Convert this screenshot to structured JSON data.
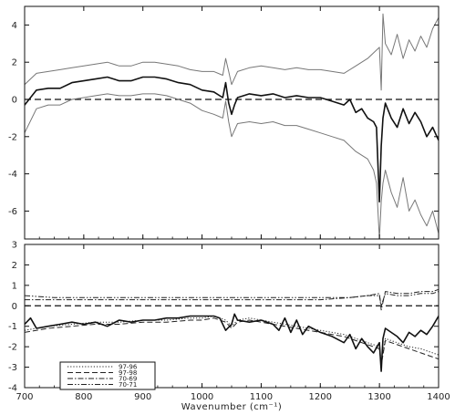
{
  "chart_data": [
    {
      "type": "line",
      "panel": "top",
      "xlabel": "",
      "ylabel": "",
      "xlim": [
        700,
        1400
      ],
      "ylim": [
        -7.5,
        5
      ],
      "xticks": [
        700,
        800,
        900,
        1000,
        1100,
        1200,
        1300,
        1400
      ],
      "yticks": [
        -6,
        -4,
        -2,
        0,
        2,
        4
      ],
      "zero_line": "dashed",
      "series": [
        {
          "role": "mean",
          "color": "#111111",
          "x": [
            700,
            720,
            740,
            760,
            780,
            800,
            820,
            840,
            860,
            880,
            900,
            920,
            940,
            960,
            980,
            1000,
            1020,
            1035,
            1040,
            1045,
            1050,
            1055,
            1060,
            1080,
            1100,
            1120,
            1140,
            1160,
            1180,
            1200,
            1220,
            1240,
            1250,
            1260,
            1270,
            1280,
            1290,
            1295,
            1300,
            1303,
            1306,
            1310,
            1320,
            1330,
            1340,
            1350,
            1360,
            1370,
            1380,
            1390,
            1400
          ],
          "values": [
            -0.3,
            0.5,
            0.6,
            0.6,
            0.9,
            1.0,
            1.1,
            1.2,
            1.0,
            1.0,
            1.2,
            1.2,
            1.1,
            0.9,
            0.8,
            0.5,
            0.4,
            0.1,
            0.9,
            -0.2,
            -0.8,
            -0.3,
            0.1,
            0.3,
            0.2,
            0.3,
            0.1,
            0.2,
            0.1,
            0.1,
            -0.1,
            -0.3,
            0.0,
            -0.7,
            -0.5,
            -1.0,
            -1.2,
            -1.5,
            -5.5,
            -2.5,
            -1.0,
            -0.2,
            -1.0,
            -1.5,
            -0.5,
            -1.3,
            -0.7,
            -1.2,
            -2.0,
            -1.5,
            -2.2
          ]
        },
        {
          "role": "upper-bound",
          "color": "#777777",
          "x": [
            700,
            720,
            740,
            760,
            780,
            800,
            820,
            840,
            860,
            880,
            900,
            920,
            940,
            960,
            980,
            1000,
            1020,
            1035,
            1040,
            1045,
            1050,
            1060,
            1080,
            1100,
            1120,
            1140,
            1160,
            1180,
            1200,
            1220,
            1240,
            1260,
            1280,
            1300,
            1303,
            1306,
            1310,
            1320,
            1330,
            1340,
            1350,
            1360,
            1370,
            1380,
            1390,
            1400
          ],
          "values": [
            0.8,
            1.4,
            1.5,
            1.6,
            1.7,
            1.8,
            1.9,
            2.0,
            1.8,
            1.8,
            2.0,
            2.0,
            1.9,
            1.8,
            1.6,
            1.5,
            1.5,
            1.3,
            2.2,
            1.5,
            0.8,
            1.5,
            1.7,
            1.8,
            1.7,
            1.6,
            1.7,
            1.6,
            1.6,
            1.5,
            1.4,
            1.8,
            2.2,
            2.8,
            0.5,
            4.6,
            3.0,
            2.4,
            3.5,
            2.2,
            3.2,
            2.6,
            3.4,
            2.8,
            3.8,
            4.4
          ]
        },
        {
          "role": "lower-bound",
          "color": "#777777",
          "x": [
            700,
            720,
            740,
            760,
            780,
            800,
            820,
            840,
            860,
            880,
            900,
            920,
            940,
            960,
            980,
            1000,
            1020,
            1035,
            1040,
            1045,
            1050,
            1060,
            1080,
            1100,
            1120,
            1140,
            1160,
            1180,
            1200,
            1220,
            1240,
            1260,
            1280,
            1290,
            1295,
            1300,
            1303,
            1306,
            1310,
            1320,
            1330,
            1340,
            1350,
            1360,
            1370,
            1380,
            1390,
            1400
          ],
          "values": [
            -1.8,
            -0.5,
            -0.3,
            -0.3,
            0.0,
            0.1,
            0.2,
            0.3,
            0.2,
            0.2,
            0.3,
            0.3,
            0.2,
            0.0,
            -0.2,
            -0.6,
            -0.8,
            -1.0,
            -0.1,
            -1.2,
            -2.0,
            -1.3,
            -1.2,
            -1.3,
            -1.2,
            -1.4,
            -1.4,
            -1.6,
            -1.8,
            -2.0,
            -2.2,
            -2.8,
            -3.2,
            -3.8,
            -4.5,
            -7.5,
            -5.5,
            -4.5,
            -3.8,
            -5.0,
            -5.8,
            -4.2,
            -6.0,
            -5.4,
            -6.2,
            -6.8,
            -6.0,
            -7.2
          ]
        }
      ]
    },
    {
      "type": "line",
      "panel": "bottom",
      "xlabel": "Wavenumber (cm⁻¹)",
      "ylabel": "",
      "xlim": [
        700,
        1400
      ],
      "ylim": [
        -4,
        3
      ],
      "xticks": [
        700,
        800,
        900,
        1000,
        1100,
        1200,
        1300,
        1400
      ],
      "yticks": [
        -4,
        -3,
        -2,
        -1,
        0,
        1,
        2,
        3
      ],
      "zero_line": "dashed",
      "legend": {
        "placement": "bottom-left"
      },
      "series": [
        {
          "name": "97-96",
          "dash": "dotted",
          "color": "#222222",
          "x": [
            700,
            740,
            780,
            820,
            860,
            900,
            940,
            980,
            1000,
            1020,
            1040,
            1050,
            1060,
            1080,
            1100,
            1120,
            1140,
            1160,
            1180,
            1200,
            1220,
            1240,
            1260,
            1280,
            1300,
            1303,
            1310,
            1330,
            1350,
            1370,
            1390,
            1400
          ],
          "values": [
            -1.2,
            -1.0,
            -0.9,
            -0.8,
            -0.8,
            -0.7,
            -0.7,
            -0.6,
            -0.6,
            -0.5,
            -0.7,
            -1.0,
            -0.7,
            -0.6,
            -0.7,
            -0.8,
            -0.9,
            -1.0,
            -1.1,
            -1.2,
            -1.3,
            -1.4,
            -1.6,
            -1.8,
            -2.0,
            -2.8,
            -1.6,
            -1.8,
            -2.0,
            -2.1,
            -2.3,
            -2.4
          ]
        },
        {
          "name": "97-98",
          "dash": "dashed",
          "color": "#222222",
          "x": [
            700,
            740,
            780,
            820,
            860,
            900,
            940,
            980,
            1000,
            1020,
            1040,
            1050,
            1060,
            1080,
            1100,
            1120,
            1140,
            1160,
            1180,
            1200,
            1220,
            1240,
            1260,
            1280,
            1300,
            1303,
            1310,
            1330,
            1350,
            1370,
            1390,
            1400
          ],
          "values": [
            -1.3,
            -1.1,
            -1.0,
            -0.9,
            -0.9,
            -0.8,
            -0.8,
            -0.7,
            -0.7,
            -0.6,
            -0.8,
            -1.1,
            -0.8,
            -0.7,
            -0.8,
            -0.9,
            -1.0,
            -1.1,
            -1.2,
            -1.3,
            -1.4,
            -1.5,
            -1.7,
            -1.9,
            -2.1,
            -2.9,
            -1.7,
            -1.9,
            -2.1,
            -2.3,
            -2.5,
            -2.6
          ]
        },
        {
          "name": "70-69",
          "dash": "dash-dot",
          "color": "#222222",
          "x": [
            700,
            750,
            800,
            850,
            900,
            950,
            1000,
            1050,
            1100,
            1150,
            1200,
            1250,
            1280,
            1300,
            1303,
            1310,
            1330,
            1350,
            1370,
            1390,
            1400
          ],
          "values": [
            0.3,
            0.3,
            0.3,
            0.3,
            0.3,
            0.3,
            0.3,
            0.3,
            0.3,
            0.3,
            0.3,
            0.4,
            0.5,
            0.6,
            -0.2,
            0.7,
            0.6,
            0.6,
            0.7,
            0.7,
            0.8
          ]
        },
        {
          "name": "70-71",
          "dash": "dash-dot-dot",
          "color": "#222222",
          "x": [
            700,
            750,
            800,
            850,
            900,
            950,
            1000,
            1050,
            1100,
            1150,
            1200,
            1250,
            1280,
            1300,
            1303,
            1310,
            1330,
            1350,
            1370,
            1390,
            1400
          ],
          "values": [
            0.5,
            0.4,
            0.4,
            0.4,
            0.4,
            0.4,
            0.4,
            0.4,
            0.4,
            0.4,
            0.4,
            0.4,
            0.5,
            0.5,
            0.0,
            0.6,
            0.5,
            0.5,
            0.6,
            0.6,
            0.7
          ]
        },
        {
          "name": "",
          "role": "mean",
          "dash": "solid",
          "color": "#111111",
          "x": [
            700,
            710,
            720,
            740,
            760,
            780,
            800,
            820,
            840,
            860,
            880,
            900,
            920,
            940,
            960,
            980,
            1000,
            1020,
            1030,
            1040,
            1050,
            1055,
            1060,
            1080,
            1100,
            1120,
            1130,
            1140,
            1150,
            1160,
            1170,
            1180,
            1200,
            1220,
            1240,
            1250,
            1260,
            1270,
            1280,
            1290,
            1300,
            1303,
            1306,
            1310,
            1330,
            1340,
            1350,
            1360,
            1370,
            1380,
            1390,
            1400
          ],
          "values": [
            -0.9,
            -0.6,
            -1.1,
            -1.0,
            -0.9,
            -0.8,
            -0.9,
            -0.8,
            -1.0,
            -0.7,
            -0.8,
            -0.7,
            -0.7,
            -0.6,
            -0.6,
            -0.5,
            -0.5,
            -0.5,
            -0.6,
            -1.2,
            -0.9,
            -0.4,
            -0.7,
            -0.8,
            -0.7,
            -0.9,
            -1.2,
            -0.6,
            -1.3,
            -0.7,
            -1.4,
            -1.0,
            -1.3,
            -1.5,
            -1.8,
            -1.4,
            -2.1,
            -1.6,
            -2.0,
            -2.3,
            -1.8,
            -3.2,
            -1.6,
            -1.1,
            -1.5,
            -1.8,
            -1.3,
            -1.5,
            -1.2,
            -1.4,
            -1.0,
            -0.5
          ]
        }
      ]
    }
  ]
}
